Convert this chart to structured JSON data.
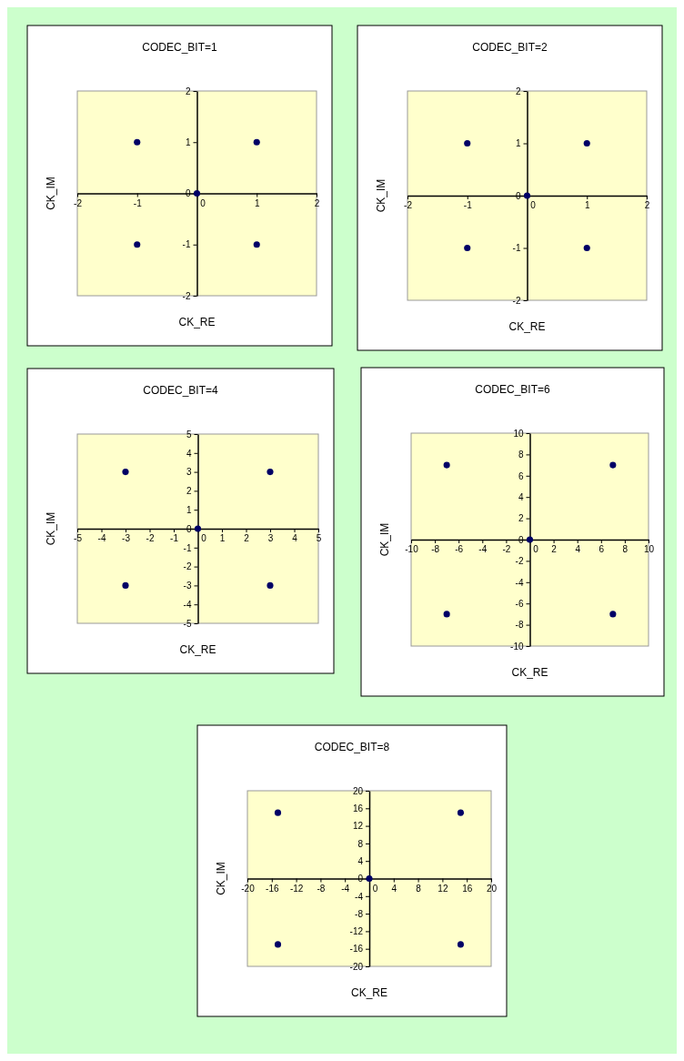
{
  "chart_data": [
    {
      "type": "scatter",
      "title": "CODEC_BIT=1",
      "xlabel": "CK_RE",
      "ylabel": "CK_IM",
      "x": [
        -1,
        1,
        -1,
        1,
        0
      ],
      "values": [
        1,
        1,
        -1,
        -1,
        0
      ],
      "color": "#000066",
      "marker": "circle",
      "grid": false,
      "xlim": [
        -2,
        2
      ],
      "ylim": [
        -2,
        2
      ],
      "xticks": [
        -2,
        -1,
        0,
        1,
        2
      ],
      "yticks": [
        -2,
        -1,
        0,
        1,
        2
      ]
    },
    {
      "type": "scatter",
      "title": "CODEC_BIT=2",
      "xlabel": "CK_RE",
      "ylabel": "CK_IM",
      "x": [
        -1,
        1,
        -1,
        1,
        0
      ],
      "values": [
        1,
        1,
        -1,
        -1,
        0
      ],
      "color": "#000066",
      "marker": "circle",
      "grid": false,
      "xlim": [
        -2,
        2
      ],
      "ylim": [
        -2,
        2
      ],
      "xticks": [
        -2,
        -1,
        0,
        1,
        2
      ],
      "yticks": [
        -2,
        -1,
        0,
        1,
        2
      ]
    },
    {
      "type": "scatter",
      "title": "CODEC_BIT=4",
      "xlabel": "CK_RE",
      "ylabel": "CK_IM",
      "x": [
        -3,
        3,
        -3,
        3,
        0
      ],
      "values": [
        3,
        3,
        -3,
        -3,
        0
      ],
      "color": "#000066",
      "marker": "circle",
      "grid": false,
      "xlim": [
        -5,
        5
      ],
      "ylim": [
        -5,
        5
      ],
      "xticks": [
        -5,
        -4,
        -3,
        -2,
        -1,
        0,
        1,
        2,
        3,
        4,
        5
      ],
      "yticks": [
        -5,
        -4,
        -3,
        -2,
        -1,
        0,
        1,
        2,
        3,
        4,
        5
      ]
    },
    {
      "type": "scatter",
      "title": "CODEC_BIT=6",
      "xlabel": "CK_RE",
      "ylabel": "CK_IM",
      "x": [
        -7,
        7,
        -7,
        7,
        0
      ],
      "values": [
        7,
        7,
        -7,
        -7,
        0
      ],
      "color": "#000066",
      "marker": "circle",
      "grid": false,
      "xlim": [
        -10,
        10
      ],
      "ylim": [
        -10,
        10
      ],
      "xticks": [
        -10,
        -8,
        -6,
        -4,
        -2,
        0,
        2,
        4,
        6,
        8,
        10
      ],
      "yticks": [
        -10,
        -8,
        -6,
        -4,
        -2,
        0,
        2,
        4,
        6,
        8,
        10
      ]
    },
    {
      "type": "scatter",
      "title": "CODEC_BIT=8",
      "xlabel": "CK_RE",
      "ylabel": "CK_IM",
      "x": [
        -15,
        15,
        -15,
        15,
        0
      ],
      "values": [
        15,
        15,
        -15,
        -15,
        0
      ],
      "color": "#000066",
      "marker": "circle",
      "grid": false,
      "xlim": [
        -20,
        20
      ],
      "ylim": [
        -20,
        20
      ],
      "xticks": [
        -20,
        -16,
        -12,
        -8,
        -4,
        0,
        4,
        8,
        12,
        16,
        20
      ],
      "yticks": [
        -20,
        -16,
        -12,
        -8,
        -4,
        0,
        4,
        8,
        12,
        16,
        20
      ]
    }
  ]
}
